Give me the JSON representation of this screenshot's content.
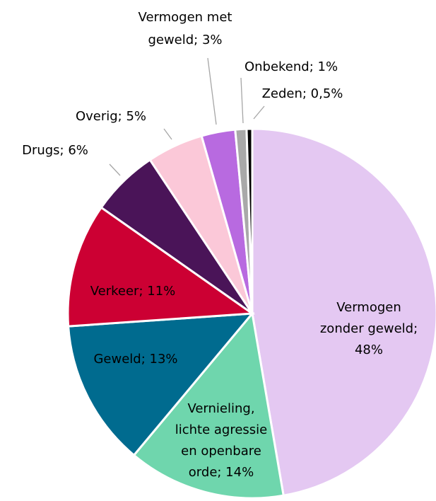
{
  "chart_data": {
    "type": "pie",
    "labels": [
      [
        "Vermogen",
        "zonder geweld;",
        "48%"
      ],
      [
        "Vernieling,",
        "lichte agressie",
        "en openbare",
        "orde; 14%"
      ],
      [
        "Geweld; 13%"
      ],
      [
        "Verkeer; 11%"
      ],
      [
        "Drugs; 6%"
      ],
      [
        "Overig; 5%"
      ],
      [
        "Vermogen met",
        "geweld; 3%"
      ],
      [
        "Onbekend; 1%"
      ],
      [
        "Zeden; 0,5%"
      ]
    ],
    "values": [
      48,
      14,
      13,
      11,
      6,
      5,
      3,
      1,
      0.5
    ],
    "colors": [
      "#e4c8f2",
      "#6fd6ad",
      "#006b8f",
      "#cc0033",
      "#4a1458",
      "#fbc8d8",
      "#b86ae0",
      "#a9a9a9",
      "#000000"
    ]
  }
}
